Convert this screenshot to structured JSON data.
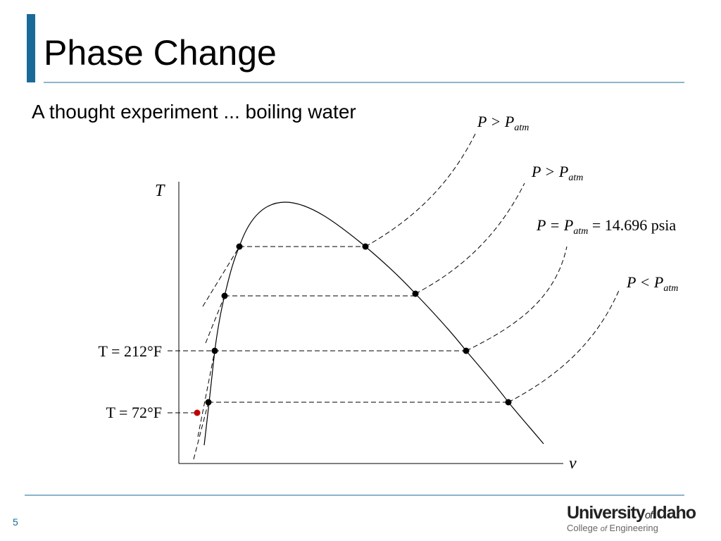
{
  "header": {
    "title": "Phase Change",
    "subtitle": "A thought experiment ... boiling water"
  },
  "diagram": {
    "y_axis_label": "T",
    "x_axis_label": "v",
    "isobars": [
      {
        "label": [
          "P > P",
          "atm"
        ]
      },
      {
        "label": [
          "P > P",
          "atm"
        ]
      },
      {
        "label": [
          "P = P",
          "atm",
          " = 14.696 psia"
        ]
      },
      {
        "label": [
          "P < P",
          "atm"
        ]
      }
    ],
    "temperature_labels": [
      "T = 212°F",
      "T = 72°F"
    ]
  },
  "footer": {
    "page_number": "5",
    "logo": {
      "line1": [
        "University",
        "of",
        "Idaho"
      ],
      "line2": [
        "College ",
        "of",
        " Engineering"
      ]
    }
  }
}
